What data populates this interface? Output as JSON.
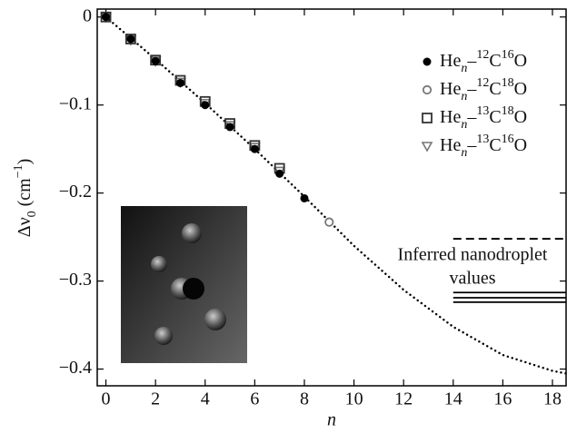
{
  "chart_data": {
    "type": "scatter",
    "xlabel": "n",
    "ylabel": "Δν0 (cm−1)",
    "xlim": [
      -0.35,
      18.55
    ],
    "ylim": [
      -0.419,
      0.009
    ],
    "xticks": [
      0,
      2,
      4,
      6,
      8,
      10,
      12,
      14,
      16,
      18
    ],
    "yticks": [
      0,
      {
        "value": -0.1,
        "label": "−0.1"
      },
      {
        "value": -0.2,
        "label": "−0.2"
      },
      {
        "value": -0.3,
        "label": "−0.3"
      },
      {
        "value": -0.4,
        "label": "−0.4"
      }
    ],
    "legend": "upper right",
    "series": [
      {
        "name": "Hen–12C16O",
        "marker": "filled-circle",
        "color": "#000000",
        "x": [
          0,
          1,
          2,
          3,
          4,
          5,
          6,
          7,
          8
        ],
        "values": [
          0,
          -0.025,
          -0.05,
          -0.075,
          -0.1,
          -0.125,
          -0.15,
          -0.178,
          -0.206
        ]
      },
      {
        "name": "Hen–12C18O",
        "marker": "open-circle",
        "color": "#777777",
        "x": [
          9
        ],
        "values": [
          -0.233
        ]
      },
      {
        "name": "Hen–13C18O",
        "marker": "open-square",
        "color": "#333333",
        "x": [
          0,
          1,
          2,
          3,
          4,
          5,
          6,
          7
        ],
        "values": [
          0,
          -0.025,
          -0.049,
          -0.072,
          -0.096,
          -0.121,
          -0.146,
          -0.172
        ]
      },
      {
        "name": "Hen–13C16O",
        "marker": "open-triangle",
        "color": "#777777",
        "x": [
          0,
          1,
          2,
          3,
          4,
          5,
          6,
          7
        ],
        "values": [
          0,
          -0.026,
          -0.05,
          -0.074,
          -0.098,
          -0.123,
          -0.148,
          -0.175
        ]
      }
    ],
    "curve": {
      "color": "#000000",
      "style": "dotted",
      "x": [
        0,
        2,
        4,
        6,
        8,
        10,
        12,
        14,
        16,
        18,
        18.55
      ],
      "values": [
        0,
        -0.048,
        -0.098,
        -0.15,
        -0.204,
        -0.26,
        -0.31,
        -0.352,
        -0.384,
        -0.402,
        -0.405
      ]
    },
    "annotation": [
      "Inferred nanodroplet",
      "values"
    ],
    "reference_lines": [
      {
        "y": -0.252,
        "xmin": 14,
        "style": "dashed"
      },
      {
        "y": -0.313,
        "xmin": 14,
        "style": "solid"
      },
      {
        "y": -0.319,
        "xmin": 14,
        "style": "solid"
      },
      {
        "y": -0.324,
        "xmin": 14,
        "style": "solid"
      }
    ]
  }
}
